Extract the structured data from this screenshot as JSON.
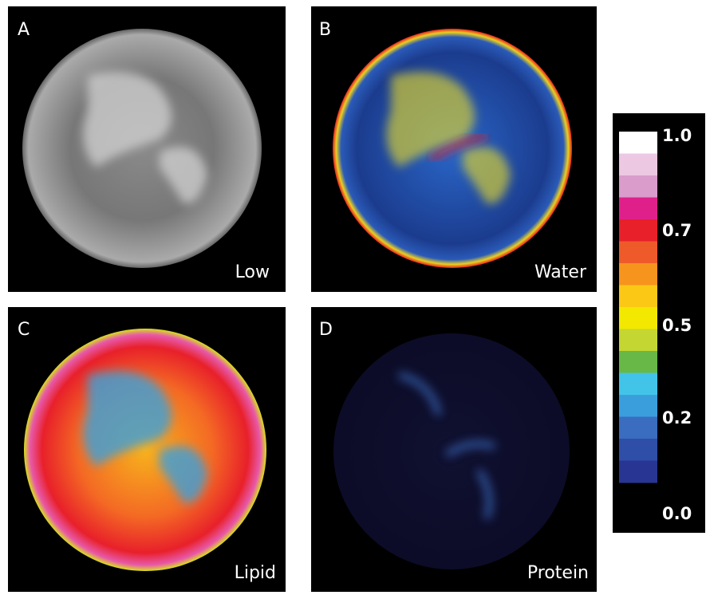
{
  "panels": [
    {
      "letter": "A",
      "label": "Low"
    },
    {
      "letter": "B",
      "label": "Water"
    },
    {
      "letter": "C",
      "label": "Lipid"
    },
    {
      "letter": "D",
      "label": "Protein"
    }
  ],
  "colorbar": {
    "colors": [
      "#ffffff",
      "#ecc8e2",
      "#d99ccb",
      "#e0208a",
      "#e8202a",
      "#ee5a2a",
      "#f7941d",
      "#fcc816",
      "#f2e800",
      "#c4d632",
      "#68b847",
      "#42c4e8",
      "#3a9edc",
      "#3a6cc0",
      "#2f4ea8",
      "#283592"
    ],
    "ticks": [
      "1.0",
      "0.7",
      "0.5",
      "0.2",
      "0.0"
    ]
  }
}
